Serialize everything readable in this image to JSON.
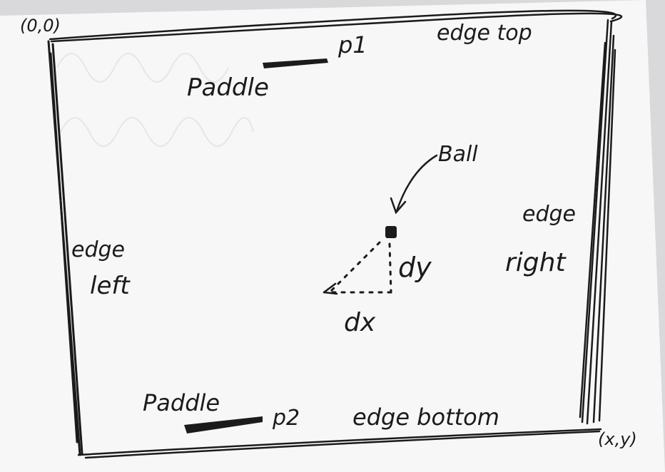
{
  "labels": {
    "origin": "(0,0)",
    "corner": "(x,y)",
    "edge_top": "edge top",
    "edge_left_1": "edge",
    "edge_left_2": "left",
    "edge_right_1": "edge",
    "edge_right_2": "right",
    "edge_bottom": "edge bottom",
    "paddle_top": "Paddle",
    "p1": "p1",
    "paddle_bottom": "Paddle",
    "p2": "p2",
    "ball": "Ball",
    "dx": "dx",
    "dy": "dy"
  },
  "colors": {
    "paper": "#f7f7f8",
    "ink": "#1b1b1b",
    "background": "#d9d9db"
  }
}
